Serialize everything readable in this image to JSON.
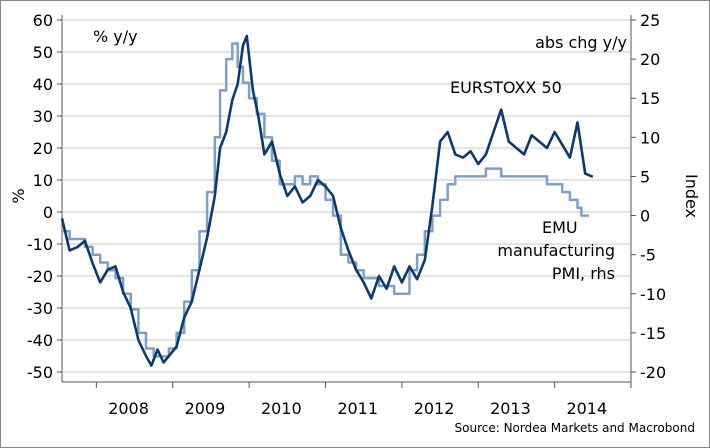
{
  "chart_data": {
    "type": "line",
    "source": "Source: Nordea Markets and Macrobond",
    "left_axis": {
      "unit_label": "% y/y",
      "label": "%",
      "ylim": [
        -50,
        60
      ],
      "ticks": [
        60,
        50,
        40,
        30,
        20,
        10,
        0,
        -10,
        -20,
        -30,
        -40,
        -50
      ]
    },
    "right_axis": {
      "unit_label": "abs chg y/y",
      "label": "Index",
      "ylim": [
        -20,
        25
      ],
      "ticks": [
        25,
        20,
        15,
        10,
        5,
        0,
        -5,
        -10,
        -15,
        -20
      ]
    },
    "x_axis": {
      "range": [
        2007.55,
        2015.0
      ],
      "year_labels": [
        "2008",
        "2009",
        "2010",
        "2011",
        "2012",
        "2013",
        "2014"
      ],
      "year_boundaries": [
        2008,
        2009,
        2010,
        2011,
        2012,
        2013,
        2014,
        2015
      ]
    },
    "gridlines": true,
    "colors": {
      "eurostoxx": "#0d3a6e",
      "pmi": "#7f9fc7",
      "grid": "#c8c8c8",
      "axis": "#555555"
    },
    "series": [
      {
        "name": "EURSTOXX 50",
        "axis": "left",
        "x": [
          2007.55,
          2007.65,
          2007.75,
          2007.85,
          2007.95,
          2008.05,
          2008.15,
          2008.25,
          2008.35,
          2008.45,
          2008.55,
          2008.65,
          2008.72,
          2008.8,
          2008.88,
          2008.95,
          2009.05,
          2009.15,
          2009.25,
          2009.35,
          2009.45,
          2009.55,
          2009.62,
          2009.7,
          2009.78,
          2009.85,
          2009.92,
          2009.97,
          2010.05,
          2010.12,
          2010.2,
          2010.3,
          2010.4,
          2010.5,
          2010.6,
          2010.7,
          2010.8,
          2010.9,
          2011.0,
          2011.1,
          2011.2,
          2011.3,
          2011.4,
          2011.5,
          2011.6,
          2011.7,
          2011.8,
          2011.9,
          2012.0,
          2012.1,
          2012.2,
          2012.3,
          2012.4,
          2012.5,
          2012.6,
          2012.7,
          2012.8,
          2012.9,
          2013.0,
          2013.1,
          2013.2,
          2013.3,
          2013.4,
          2013.5,
          2013.6,
          2013.7,
          2013.8,
          2013.9,
          2014.0,
          2014.1,
          2014.2,
          2014.3,
          2014.4,
          2014.5
        ],
        "values": [
          -2,
          -12,
          -11,
          -9,
          -16,
          -22,
          -18,
          -17,
          -25,
          -30,
          -40,
          -45,
          -48,
          -43,
          -47,
          -45,
          -42,
          -33,
          -28,
          -18,
          -8,
          5,
          20,
          25,
          35,
          40,
          52,
          55,
          38,
          30,
          18,
          22,
          12,
          5,
          8,
          3,
          5,
          10,
          8,
          5,
          -5,
          -12,
          -18,
          -22,
          -27,
          -20,
          -24,
          -17,
          -22,
          -17,
          -21,
          -15,
          2,
          22,
          25,
          18,
          17,
          19,
          15,
          18,
          25,
          32,
          22,
          20,
          18,
          24,
          22,
          20,
          25,
          21,
          17,
          28,
          12,
          11
        ]
      },
      {
        "name": "EMU manufacturing PMI, rhs",
        "axis": "right",
        "x": [
          2007.55,
          2007.65,
          2007.75,
          2007.85,
          2007.95,
          2008.05,
          2008.15,
          2008.25,
          2008.35,
          2008.45,
          2008.55,
          2008.65,
          2008.75,
          2008.85,
          2008.95,
          2009.05,
          2009.15,
          2009.25,
          2009.35,
          2009.45,
          2009.55,
          2009.62,
          2009.7,
          2009.78,
          2009.85,
          2009.92,
          2010.0,
          2010.1,
          2010.2,
          2010.3,
          2010.4,
          2010.5,
          2010.6,
          2010.7,
          2010.8,
          2010.9,
          2011.0,
          2011.1,
          2011.2,
          2011.3,
          2011.4,
          2011.5,
          2011.6,
          2011.7,
          2011.8,
          2011.9,
          2012.0,
          2012.1,
          2012.2,
          2012.3,
          2012.4,
          2012.5,
          2012.6,
          2012.7,
          2012.8,
          2012.9,
          2013.0,
          2013.1,
          2013.2,
          2013.3,
          2013.4,
          2013.5,
          2013.6,
          2013.7,
          2013.8,
          2013.9,
          2014.0,
          2014.1,
          2014.2,
          2014.3,
          2014.35,
          2014.45
        ],
        "values": [
          -2,
          -3,
          -3,
          -4,
          -5,
          -6,
          -7,
          -8,
          -10,
          -12,
          -15,
          -17,
          -18,
          -18,
          -17,
          -15,
          -11,
          -7,
          -2,
          3,
          10,
          16,
          20,
          22,
          19,
          17,
          15,
          13,
          10,
          7,
          4,
          4,
          5,
          4,
          5,
          4,
          2,
          0,
          -5,
          -6,
          -7,
          -8,
          -8,
          -9,
          -9,
          -10,
          -10,
          -7,
          -5,
          -2,
          0,
          2,
          4,
          5,
          5,
          5,
          5,
          6,
          6,
          5,
          5,
          5,
          5,
          5,
          5,
          4,
          4,
          3,
          2,
          1,
          0,
          0
        ]
      }
    ],
    "annotations": [
      {
        "text": "EURSTOXX 50"
      },
      {
        "text": "EMU"
      },
      {
        "text": "manufacturing"
      },
      {
        "text": "PMI, rhs"
      }
    ]
  }
}
